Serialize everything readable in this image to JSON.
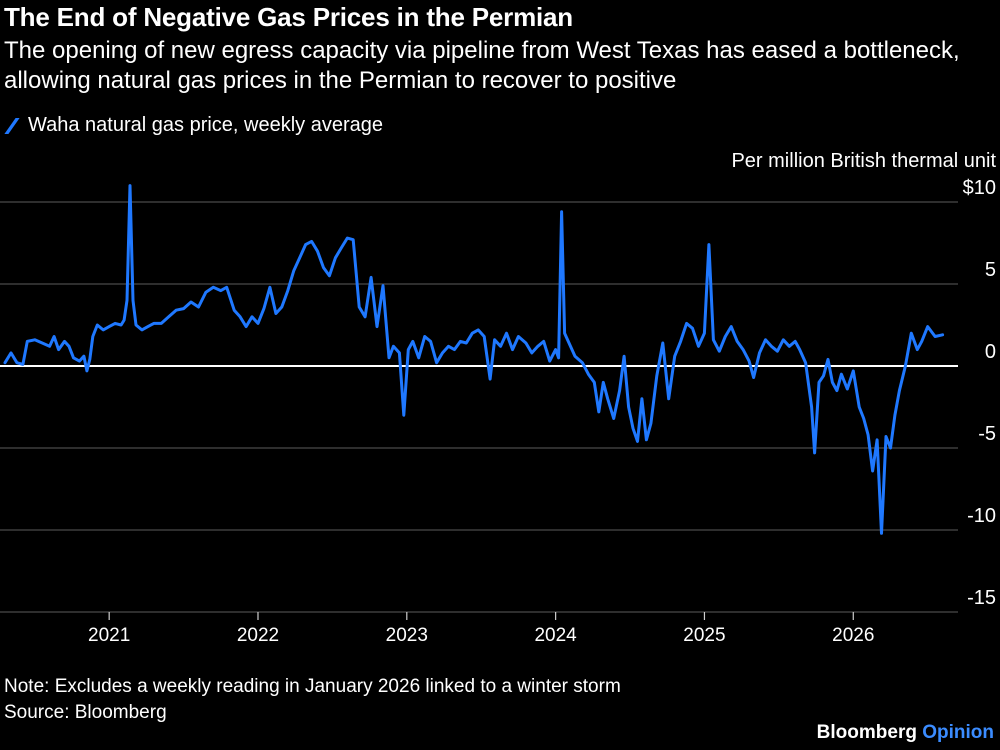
{
  "header": {
    "title": "The End of Negative Gas Prices in the Permian",
    "subtitle": "The opening of new egress capacity via pipeline from West Texas has eased a bottleneck, allowing natural gas prices in the Permian to recover to positive"
  },
  "legend": {
    "label": "Waha natural gas price, weekly average"
  },
  "footer": {
    "note": "Note: Excludes a weekly reading in January 2026 linked to a winter storm",
    "source": "Source: Bloomberg",
    "brand_main": "Bloomberg",
    "brand_accent": "Opinion"
  },
  "colors": {
    "line": "#1f78ff",
    "grid": "#4a4a4a",
    "zero": "#ffffff",
    "background": "#000000",
    "brand_accent": "#3b8cff"
  },
  "chart_data": {
    "type": "line",
    "ylabel": "Per million British thermal unit",
    "ylim": [
      -15,
      10
    ],
    "yticks": [
      10,
      5,
      0,
      -5,
      -10,
      -15
    ],
    "ytick_labels": [
      "$10",
      "5",
      "0",
      "-5",
      "-10",
      "-15"
    ],
    "xlim": [
      2020.3,
      2026.65
    ],
    "xticks": [
      2021,
      2022,
      2023,
      2024,
      2025,
      2026
    ],
    "xtick_labels": [
      "2021",
      "2022",
      "2023",
      "2024",
      "2025",
      "2026"
    ],
    "grid": true,
    "legend_position": "top-left",
    "series": [
      {
        "name": "Waha natural gas price, weekly average",
        "points": [
          [
            2020.3,
            0.2
          ],
          [
            2020.34,
            0.8
          ],
          [
            2020.38,
            0.2
          ],
          [
            2020.42,
            0.1
          ],
          [
            2020.45,
            1.5
          ],
          [
            2020.5,
            1.6
          ],
          [
            2020.55,
            1.4
          ],
          [
            2020.6,
            1.2
          ],
          [
            2020.63,
            1.8
          ],
          [
            2020.66,
            1.0
          ],
          [
            2020.7,
            1.5
          ],
          [
            2020.73,
            1.2
          ],
          [
            2020.76,
            0.5
          ],
          [
            2020.8,
            0.3
          ],
          [
            2020.83,
            0.6
          ],
          [
            2020.85,
            -0.3
          ],
          [
            2020.87,
            0.4
          ],
          [
            2020.89,
            1.8
          ],
          [
            2020.92,
            2.5
          ],
          [
            2020.96,
            2.2
          ],
          [
            2021.0,
            2.4
          ],
          [
            2021.04,
            2.6
          ],
          [
            2021.08,
            2.5
          ],
          [
            2021.1,
            2.8
          ],
          [
            2021.12,
            4.0
          ],
          [
            2021.14,
            11.0
          ],
          [
            2021.16,
            4.0
          ],
          [
            2021.18,
            2.5
          ],
          [
            2021.22,
            2.2
          ],
          [
            2021.26,
            2.4
          ],
          [
            2021.3,
            2.6
          ],
          [
            2021.35,
            2.6
          ],
          [
            2021.4,
            3.0
          ],
          [
            2021.45,
            3.4
          ],
          [
            2021.5,
            3.5
          ],
          [
            2021.55,
            3.9
          ],
          [
            2021.6,
            3.6
          ],
          [
            2021.65,
            4.5
          ],
          [
            2021.7,
            4.8
          ],
          [
            2021.75,
            4.6
          ],
          [
            2021.79,
            4.8
          ],
          [
            2021.84,
            3.4
          ],
          [
            2021.88,
            3.0
          ],
          [
            2021.92,
            2.4
          ],
          [
            2021.96,
            3.0
          ],
          [
            2022.0,
            2.6
          ],
          [
            2022.04,
            3.5
          ],
          [
            2022.08,
            4.8
          ],
          [
            2022.12,
            3.2
          ],
          [
            2022.16,
            3.6
          ],
          [
            2022.2,
            4.6
          ],
          [
            2022.24,
            5.8
          ],
          [
            2022.28,
            6.6
          ],
          [
            2022.32,
            7.4
          ],
          [
            2022.36,
            7.6
          ],
          [
            2022.4,
            7.0
          ],
          [
            2022.44,
            6.0
          ],
          [
            2022.48,
            5.5
          ],
          [
            2022.52,
            6.6
          ],
          [
            2022.56,
            7.2
          ],
          [
            2022.6,
            7.8
          ],
          [
            2022.64,
            7.7
          ],
          [
            2022.68,
            3.6
          ],
          [
            2022.72,
            3.0
          ],
          [
            2022.76,
            5.4
          ],
          [
            2022.8,
            2.4
          ],
          [
            2022.84,
            4.9
          ],
          [
            2022.88,
            0.5
          ],
          [
            2022.91,
            1.2
          ],
          [
            2022.95,
            0.8
          ],
          [
            2022.98,
            -3.0
          ],
          [
            2023.01,
            1.0
          ],
          [
            2023.04,
            1.5
          ],
          [
            2023.08,
            0.5
          ],
          [
            2023.12,
            1.8
          ],
          [
            2023.16,
            1.5
          ],
          [
            2023.2,
            0.2
          ],
          [
            2023.24,
            0.8
          ],
          [
            2023.28,
            1.2
          ],
          [
            2023.32,
            1.0
          ],
          [
            2023.36,
            1.5
          ],
          [
            2023.4,
            1.4
          ],
          [
            2023.44,
            2.0
          ],
          [
            2023.48,
            2.2
          ],
          [
            2023.52,
            1.8
          ],
          [
            2023.56,
            -0.8
          ],
          [
            2023.59,
            1.6
          ],
          [
            2023.63,
            1.2
          ],
          [
            2023.67,
            2.0
          ],
          [
            2023.71,
            1.0
          ],
          [
            2023.75,
            1.8
          ],
          [
            2023.8,
            1.4
          ],
          [
            2023.84,
            0.8
          ],
          [
            2023.88,
            1.2
          ],
          [
            2023.92,
            1.5
          ],
          [
            2023.96,
            0.3
          ],
          [
            2024.0,
            1.0
          ],
          [
            2024.02,
            0.5
          ],
          [
            2024.04,
            9.4
          ],
          [
            2024.06,
            2.0
          ],
          [
            2024.09,
            1.4
          ],
          [
            2024.13,
            0.6
          ],
          [
            2024.18,
            0.2
          ],
          [
            2024.22,
            -0.5
          ],
          [
            2024.26,
            -1.0
          ],
          [
            2024.29,
            -2.8
          ],
          [
            2024.32,
            -1.0
          ],
          [
            2024.35,
            -2.0
          ],
          [
            2024.39,
            -3.2
          ],
          [
            2024.43,
            -1.5
          ],
          [
            2024.46,
            0.6
          ],
          [
            2024.49,
            -2.5
          ],
          [
            2024.52,
            -3.8
          ],
          [
            2024.55,
            -4.6
          ],
          [
            2024.58,
            -2.0
          ],
          [
            2024.61,
            -4.5
          ],
          [
            2024.64,
            -3.5
          ],
          [
            2024.68,
            -0.6
          ],
          [
            2024.72,
            1.4
          ],
          [
            2024.76,
            -2.0
          ],
          [
            2024.8,
            0.6
          ],
          [
            2024.84,
            1.5
          ],
          [
            2024.88,
            2.6
          ],
          [
            2024.92,
            2.3
          ],
          [
            2024.96,
            1.2
          ],
          [
            2025.0,
            2.0
          ],
          [
            2025.03,
            7.4
          ],
          [
            2025.06,
            1.6
          ],
          [
            2025.1,
            0.9
          ],
          [
            2025.14,
            1.8
          ],
          [
            2025.18,
            2.4
          ],
          [
            2025.22,
            1.5
          ],
          [
            2025.26,
            1.0
          ],
          [
            2025.3,
            0.3
          ],
          [
            2025.33,
            -0.7
          ],
          [
            2025.37,
            0.8
          ],
          [
            2025.41,
            1.6
          ],
          [
            2025.45,
            1.2
          ],
          [
            2025.49,
            0.9
          ],
          [
            2025.53,
            1.6
          ],
          [
            2025.57,
            1.2
          ],
          [
            2025.61,
            1.5
          ],
          [
            2025.64,
            1.0
          ],
          [
            2025.68,
            0.2
          ],
          [
            2025.72,
            -2.5
          ],
          [
            2025.74,
            -5.3
          ],
          [
            2025.77,
            -1.0
          ],
          [
            2025.8,
            -0.6
          ],
          [
            2025.83,
            0.4
          ],
          [
            2025.86,
            -1.0
          ],
          [
            2025.89,
            -1.5
          ],
          [
            2025.92,
            -0.5
          ],
          [
            2025.96,
            -1.4
          ],
          [
            2026.0,
            -0.3
          ],
          [
            2026.04,
            -2.5
          ],
          [
            2026.07,
            -3.2
          ],
          [
            2026.1,
            -4.2
          ],
          [
            2026.13,
            -6.4
          ],
          [
            2026.16,
            -4.5
          ],
          [
            2026.19,
            -10.2
          ],
          [
            2026.22,
            -4.3
          ],
          [
            2026.25,
            -5.0
          ],
          [
            2026.28,
            -3.0
          ],
          [
            2026.31,
            -1.5
          ],
          [
            2026.35,
            0.0
          ],
          [
            2026.39,
            2.0
          ],
          [
            2026.43,
            1.0
          ],
          [
            2026.46,
            1.5
          ],
          [
            2026.5,
            2.4
          ],
          [
            2026.55,
            1.8
          ],
          [
            2026.6,
            1.9
          ]
        ]
      }
    ]
  }
}
